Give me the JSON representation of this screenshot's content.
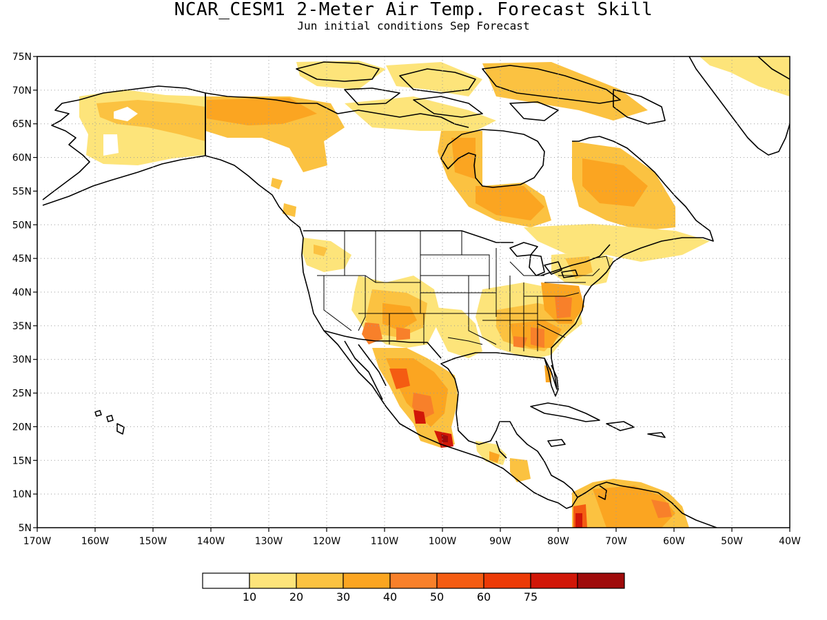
{
  "header": {
    "title": "NCAR_CESM1 2-Meter Air Temp. Forecast Skill",
    "subtitle": "Jun initial conditions  Sep Forecast"
  },
  "map": {
    "extent": {
      "lon": [
        -170,
        -40
      ],
      "lat": [
        5,
        75
      ]
    },
    "grid": "dotted",
    "lat_ticks": [
      "5N",
      "10N",
      "15N",
      "20N",
      "25N",
      "30N",
      "35N",
      "40N",
      "45N",
      "50N",
      "55N",
      "60N",
      "65N",
      "70N",
      "75N"
    ],
    "lon_ticks": [
      "170W",
      "160W",
      "150W",
      "140W",
      "130W",
      "120W",
      "110W",
      "100W",
      "90W",
      "80W",
      "70W",
      "60W",
      "50W",
      "40W"
    ],
    "coastline_color": "#000000"
  },
  "colorbar": {
    "colors": [
      "#ffffff",
      "#fde47a",
      "#fbc241",
      "#fba521",
      "#f8802a",
      "#f45c12",
      "#ec3a06",
      "#d11708",
      "#9f0b0b"
    ],
    "labels": [
      "10",
      "20",
      "30",
      "40",
      "50",
      "60",
      "75"
    ]
  }
}
